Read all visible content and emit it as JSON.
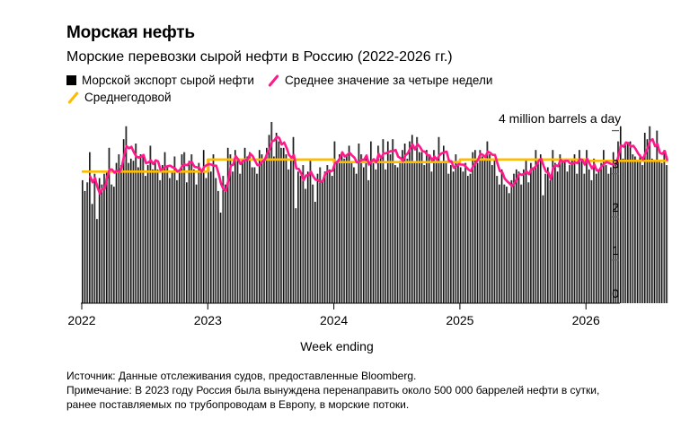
{
  "header": {
    "title": "Морская нефть",
    "subtitle": "Морские перевозки сырой нефти в Россию (2022-2026 гг.)"
  },
  "legend": {
    "items": [
      {
        "label": "Морской экспорт сырой нефти",
        "color": "#000000",
        "icon": "square-icon"
      },
      {
        "label": "Среднее значение за четыре недели",
        "color": "#ff1a8c",
        "icon": "slash-line-icon"
      },
      {
        "label": "Среднегодовой",
        "color": "#ffbb00",
        "icon": "slash-line-icon"
      }
    ]
  },
  "footer": {
    "source": "Источник: Данные отслеживания судов, предоставленные Bloomberg.",
    "note_line1": "Примечание: В 2023 году Россия была вынуждена перенаправить около 500 000 баррелей нефти в сутки,",
    "note_line2": "ранее поставляемых по трубопроводам в Европу, в морские потоки."
  },
  "chart_data": {
    "type": "bar",
    "title": "Морские перевозки сырой нефти в Россию (2022-2026 гг.)",
    "xlabel": "Week ending",
    "ylabel": "million barrels a day",
    "unit_label": "4 million barrels a day",
    "ylim": [
      0,
      4
    ],
    "yticks": [
      0,
      1,
      2,
      3,
      4
    ],
    "ytick_labels": [
      "0",
      "1",
      "2",
      "3",
      "4 million barrels a day"
    ],
    "xlim": [
      2022.0,
      2026.25
    ],
    "xticks": [
      2022,
      2023,
      2024,
      2025,
      2026
    ],
    "xtick_labels": [
      "2022",
      "2023",
      "2024",
      "2025",
      "2026"
    ],
    "grid": false,
    "bar_color": "#000000",
    "week_start": 2022.0,
    "weeks_per_year": 52,
    "series": [
      {
        "name": "Морской экспорт сырой нефти",
        "type": "bar",
        "values": [
          2.85,
          2.6,
          2.8,
          3.5,
          2.3,
          3.0,
          1.95,
          2.9,
          2.75,
          3.0,
          3.05,
          3.6,
          2.75,
          2.7,
          3.25,
          3.45,
          3.2,
          3.8,
          4.1,
          3.25,
          3.35,
          3.3,
          3.7,
          3.15,
          3.45,
          3.45,
          2.95,
          3.2,
          3.65,
          3.1,
          3.3,
          3.1,
          2.85,
          3.2,
          3.5,
          3.15,
          2.9,
          3.05,
          3.4,
          2.85,
          3.05,
          3.45,
          3.5,
          2.8,
          3.3,
          3.45,
          3.1,
          2.75,
          3.25,
          3.1,
          3.55,
          2.9,
          3.35,
          3.05,
          3.45,
          2.9,
          2.6,
          2.1,
          2.95,
          2.75,
          3.6,
          3.45,
          3.05,
          3.55,
          3.3,
          3.0,
          3.35,
          3.6,
          3.4,
          3.5,
          3.15,
          3.15,
          3.0,
          3.55,
          3.45,
          3.3,
          3.6,
          3.9,
          4.2,
          3.4,
          3.95,
          3.75,
          3.6,
          3.6,
          3.45,
          3.1,
          3.35,
          3.85,
          2.2,
          3.05,
          2.95,
          3.2,
          2.65,
          3.05,
          3.3,
          2.75,
          2.35,
          3.0,
          3.15,
          2.85,
          3.05,
          3.2,
          3.1,
          2.95,
          3.75,
          3.3,
          3.45,
          3.5,
          3.35,
          3.45,
          3.65,
          3.25,
          3.15,
          3.0,
          3.7,
          3.45,
          3.15,
          3.4,
          2.85,
          3.75,
          3.35,
          3.1,
          3.65,
          3.35,
          3.8,
          3.1,
          3.75,
          3.45,
          3.8,
          3.2,
          3.15,
          3.3,
          3.55,
          3.7,
          3.35,
          3.75,
          3.9,
          3.25,
          3.85,
          3.5,
          3.5,
          3.2,
          3.55,
          3.45,
          3.05,
          3.55,
          3.25,
          3.85,
          3.25,
          3.65,
          3.3,
          3.0,
          3.2,
          3.05,
          3.45,
          3.2,
          3.15,
          3.05,
          3.25,
          2.95,
          3.0,
          3.5,
          3.55,
          3.25,
          3.55,
          3.4,
          3.35,
          3.75,
          3.45,
          3.2,
          3.35,
          2.95,
          2.75,
          3.1,
          2.75,
          2.7,
          2.55,
          2.85,
          3.0,
          3.1,
          3.05,
          2.75,
          3.1,
          3.3,
          2.8,
          3.25,
          3.15,
          3.55,
          3.25,
          3.45,
          2.5,
          3.0,
          3.15,
          2.85,
          3.55,
          3.25,
          3.05,
          3.45,
          3.35,
          3.35,
          3.05,
          3.2,
          3.35,
          3.45,
          3.0,
          3.55,
          3.3,
          3.0,
          3.55,
          3.1,
          2.85,
          3.35,
          3.0,
          3.1,
          3.25,
          3.55,
          3.2,
          3.0,
          3.15,
          3.5,
          3.3,
          3.75,
          4.1,
          3.35,
          3.7,
          3.7,
          3.75,
          3.45,
          3.4,
          3.3,
          3.45,
          3.2,
          3.95,
          3.8,
          4.1,
          3.35,
          3.3,
          4.0,
          3.3,
          3.25,
          3.55,
          3.2
        ]
      },
      {
        "name": "Среднее значение за четыре недели",
        "type": "line",
        "color": "#ff1a8c",
        "window_weeks": 4
      },
      {
        "name": "Среднегодовой",
        "type": "step",
        "color": "#ffbb00",
        "years": [
          2022,
          2023,
          2024,
          2025,
          2026
        ],
        "values": [
          3.05,
          3.33,
          3.27,
          3.33,
          3.3
        ]
      }
    ]
  }
}
